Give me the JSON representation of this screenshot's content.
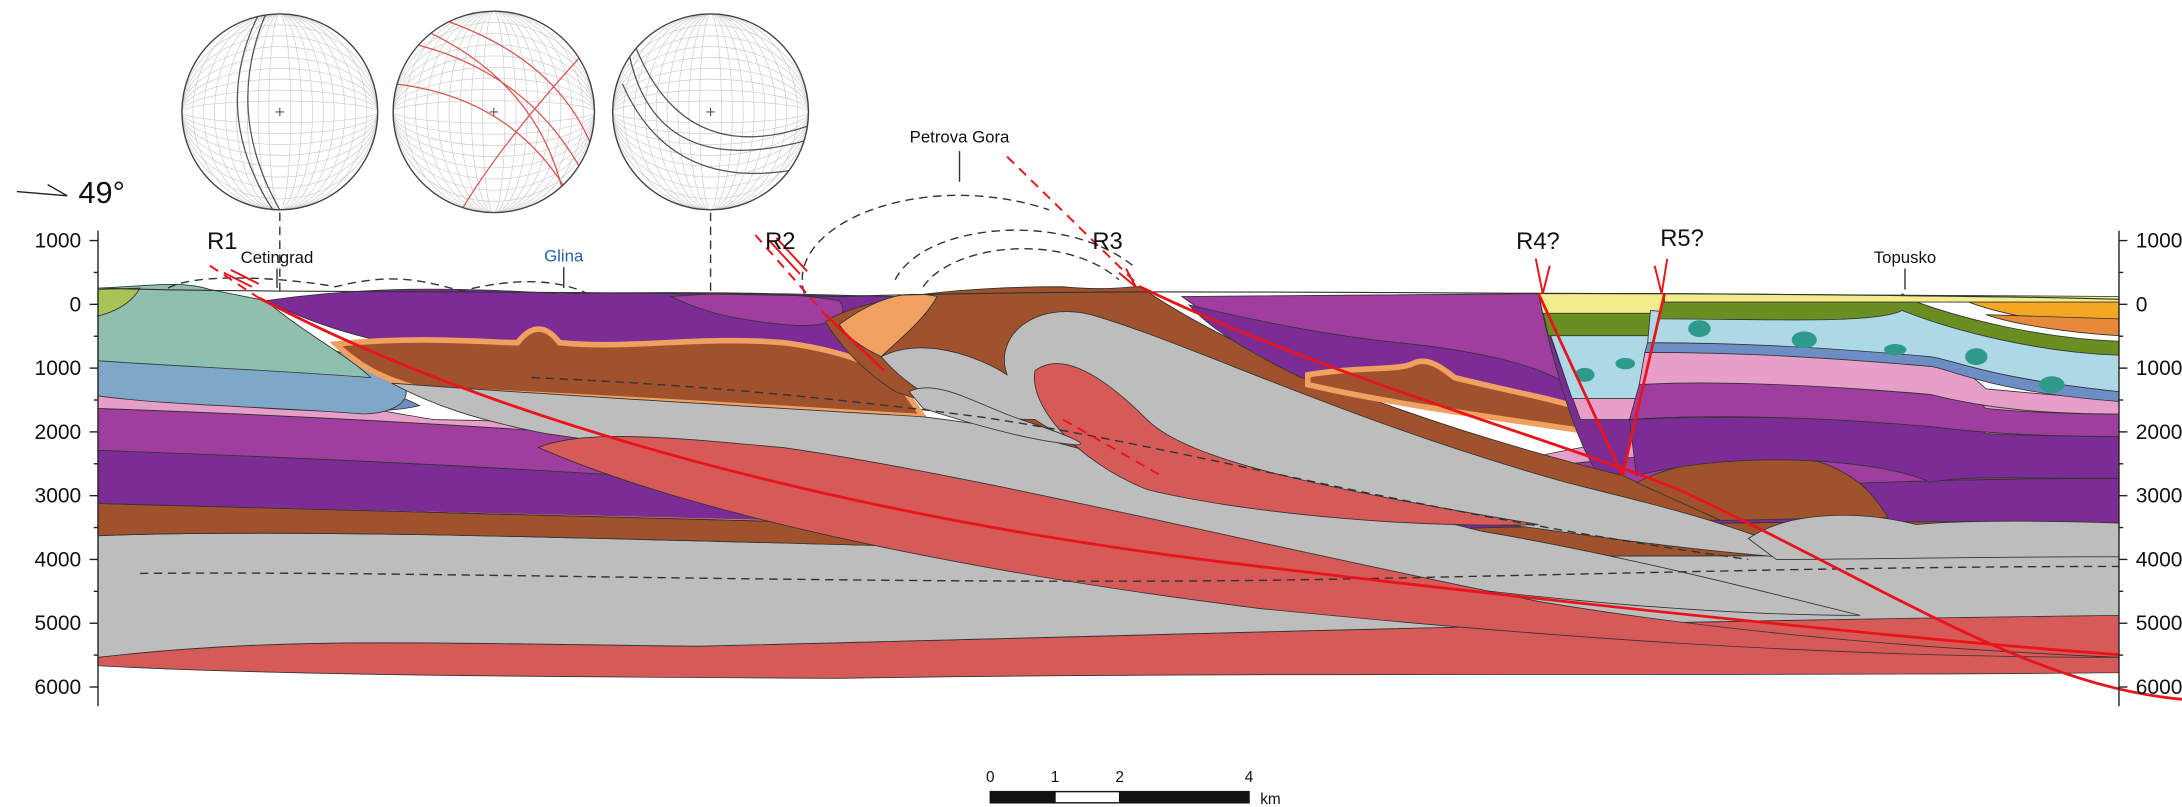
{
  "orientation": "49°",
  "depth_ticks": [
    1000,
    0,
    1000,
    2000,
    3000,
    4000,
    5000,
    6000
  ],
  "faults": [
    "R1",
    "R2",
    "R3",
    "R4?",
    "R5?"
  ],
  "places": [
    "Cetingrad",
    "Glina",
    "Petrova Gora",
    "Topusko"
  ],
  "scale_bar": {
    "ticks": [
      0,
      1,
      2,
      4
    ],
    "unit": "km"
  }
}
